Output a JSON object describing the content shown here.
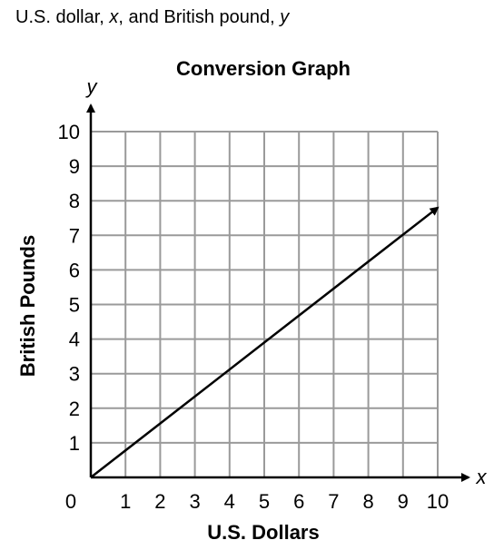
{
  "caption": {
    "prefix": "U.S. dollar, ",
    "x_var": "x",
    "middle": ", and British pound, ",
    "y_var": "y"
  },
  "chart_data": {
    "type": "line",
    "title": "Conversion Graph",
    "xlabel": "U.S. Dollars",
    "ylabel": "British Pounds",
    "x_axis_var": "x",
    "y_axis_var": "y",
    "origin_label": "0",
    "xlim": [
      0,
      10
    ],
    "ylim": [
      0,
      10
    ],
    "x_ticks": [
      "1",
      "2",
      "3",
      "4",
      "5",
      "6",
      "7",
      "8",
      "9",
      "10"
    ],
    "y_ticks": [
      "1",
      "2",
      "3",
      "4",
      "5",
      "6",
      "7",
      "8",
      "9",
      "10"
    ],
    "grid": true,
    "series": [
      {
        "x": [
          0,
          10
        ],
        "y": [
          0,
          7.8
        ],
        "arrow_end": true
      }
    ],
    "colors": {
      "grid": "#9a9a9a",
      "axis": "#000000",
      "line": "#000000"
    }
  }
}
